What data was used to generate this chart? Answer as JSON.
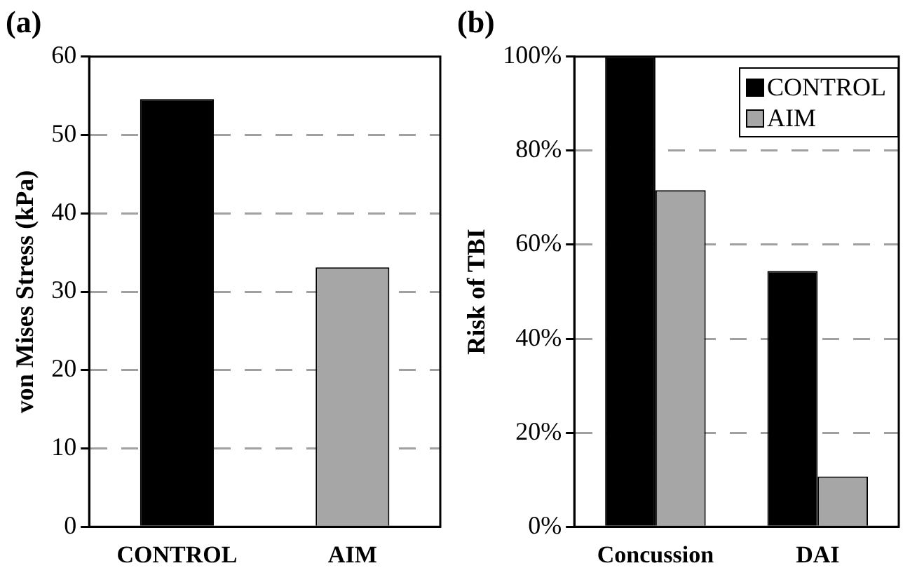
{
  "chart_data": [
    {
      "type": "bar",
      "title": "(a)",
      "ylabel": "von Mises Stress (kPa)",
      "categories": [
        "CONTROL",
        "AIM"
      ],
      "values": [
        54.6,
        33.1
      ],
      "colors": [
        "#000000",
        "#a6a6a6"
      ],
      "ylim": [
        0,
        60
      ],
      "yticks": [
        0,
        10,
        20,
        30,
        40,
        50,
        60
      ],
      "grid": "y",
      "legend": false
    },
    {
      "type": "bar",
      "title": "(b)",
      "ylabel": "Risk of TBI",
      "categories": [
        "Concussion",
        "DAI"
      ],
      "series": [
        {
          "name": "CONTROL",
          "color": "#000000",
          "values": [
            100,
            54.4
          ]
        },
        {
          "name": "AIM",
          "color": "#a6a6a6",
          "values": [
            71.6,
            10.7
          ]
        }
      ],
      "ylim": [
        0,
        100
      ],
      "yticks": [
        {
          "value": 0,
          "label": "0%"
        },
        {
          "value": 20,
          "label": "20%"
        },
        {
          "value": 40,
          "label": "40%"
        },
        {
          "value": 60,
          "label": "60%"
        },
        {
          "value": 80,
          "label": "80%"
        },
        {
          "value": 100,
          "label": "100%"
        }
      ],
      "grid": "y",
      "legend": "top right"
    }
  ]
}
